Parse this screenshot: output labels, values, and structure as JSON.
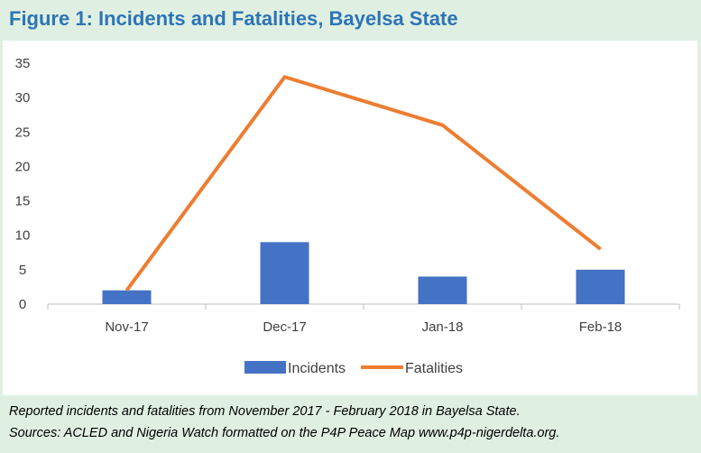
{
  "header": {
    "title": "Figure 1: Incidents and Fatalities, Bayelsa State"
  },
  "caption": {
    "line1": "Reported incidents and  fatalities from November 2017 - February 2018 in Bayelsa State.",
    "line2": "Sources: ACLED and Nigeria Watch formatted on the P4P Peace Map www.p4p-nigerdelta.org."
  },
  "chart_data": {
    "type": "bar",
    "title": "",
    "xlabel": "",
    "ylabel": "",
    "categories": [
      "Nov-17",
      "Dec-17",
      "Jan-18",
      "Feb-18"
    ],
    "ylim": [
      0,
      35
    ],
    "yticks": [
      0,
      5,
      10,
      15,
      20,
      25,
      30,
      35
    ],
    "grid": false,
    "legend": "bottom",
    "series": [
      {
        "name": "Incidents",
        "type": "bar",
        "color": "#4472c4",
        "values": [
          2,
          9,
          4,
          5
        ]
      },
      {
        "name": "Fatalities",
        "type": "line",
        "color": "#ed7d31",
        "values": [
          2,
          33,
          26,
          8
        ]
      }
    ]
  }
}
